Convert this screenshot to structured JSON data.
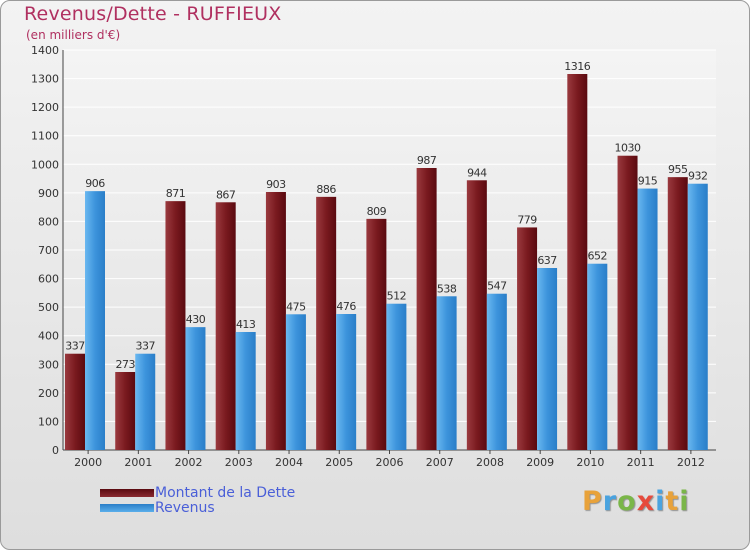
{
  "chart_data": {
    "type": "bar",
    "title": "Revenus/Dette - RUFFIEUX",
    "subtitle": "(en milliers d'€)",
    "categories": [
      "2000",
      "2001",
      "2002",
      "2003",
      "2004",
      "2005",
      "2006",
      "2007",
      "2008",
      "2009",
      "2010",
      "2011",
      "2012"
    ],
    "series": [
      {
        "name": "Montant de la Dette",
        "color": "#7a1a1f",
        "values": [
          337,
          273,
          871,
          867,
          903,
          886,
          809,
          987,
          944,
          779,
          1316,
          1030,
          955
        ]
      },
      {
        "name": "Revenus",
        "color": "#3d94dc",
        "values": [
          906,
          337,
          430,
          413,
          475,
          476,
          512,
          538,
          547,
          637,
          652,
          915,
          932
        ]
      }
    ],
    "ylim": [
      0,
      1400
    ],
    "yticks": [
      0,
      100,
      200,
      300,
      400,
      500,
      600,
      700,
      800,
      900,
      1000,
      1100,
      1200,
      1300,
      1400
    ],
    "grid": true,
    "legend": "bottom-left"
  },
  "logo": {
    "letters": [
      {
        "ch": "P",
        "color": "#e8a23a"
      },
      {
        "ch": "r",
        "color": "#4aa3df"
      },
      {
        "ch": "o",
        "color": "#7ab648"
      },
      {
        "ch": "x",
        "color": "#e64a3c"
      },
      {
        "ch": "i",
        "color": "#4aa3df"
      },
      {
        "ch": "t",
        "color": "#e8a23a"
      },
      {
        "ch": "i",
        "color": "#7ab648"
      }
    ]
  }
}
